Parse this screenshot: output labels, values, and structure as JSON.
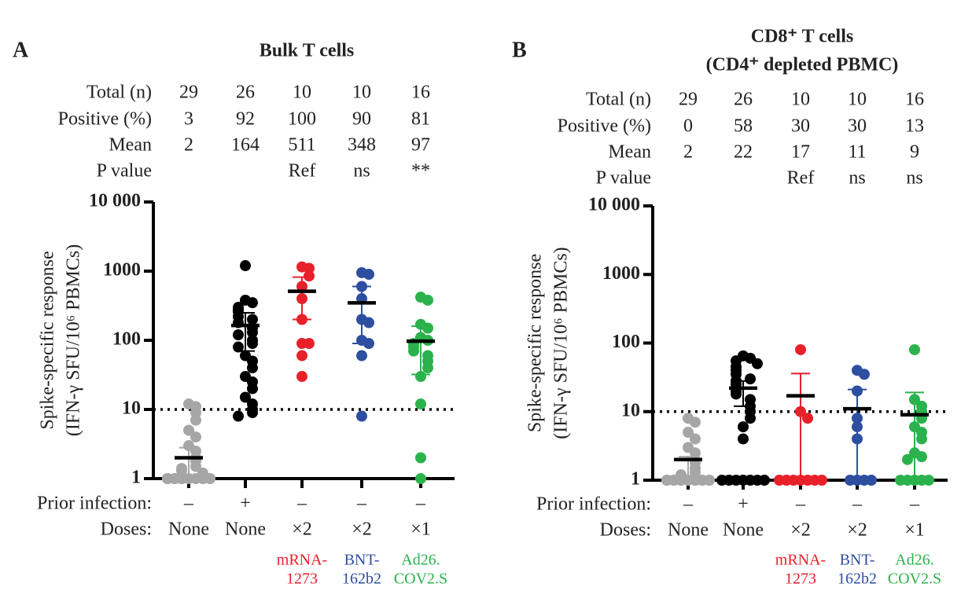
{
  "chart_data": [
    {
      "type": "scatter",
      "panel": "A",
      "title": [
        "Bulk T cells"
      ],
      "ylabel": [
        "Spike-specific response",
        "(IFN-γ SFU/10⁶ PBMCs)"
      ],
      "log": true,
      "ylim": [
        1,
        10000
      ],
      "yticks": [
        1,
        10,
        100,
        1000,
        {
          "value": 10000,
          "label": "10 000"
        }
      ],
      "threshold": 10,
      "header": [
        {
          "label": "Total (n)",
          "values": [
            29,
            26,
            10,
            10,
            16
          ]
        },
        {
          "label": "Positive (%)",
          "values": [
            3,
            92,
            100,
            90,
            81
          ]
        },
        {
          "label": "Mean",
          "values": [
            2,
            164,
            511,
            348,
            97
          ]
        },
        {
          "label": "P value",
          "values": [
            null,
            null,
            "Ref",
            "ns",
            "**"
          ]
        }
      ],
      "groups": [
        {
          "color": "#a6a6a6",
          "values": [
            12,
            11,
            9,
            7,
            5,
            4,
            3,
            2.5,
            2,
            1.8,
            1.5,
            1.4,
            1.3,
            1.2,
            1.1,
            1,
            1,
            1,
            1,
            1,
            1,
            1,
            1,
            1,
            1,
            1,
            1,
            1,
            1
          ],
          "error_low": 1,
          "error_high": 2.8
        },
        {
          "color": "#000000",
          "values": [
            1200,
            380,
            350,
            300,
            280,
            260,
            220,
            200,
            180,
            150,
            130,
            120,
            100,
            90,
            80,
            60,
            50,
            40,
            30,
            25,
            20,
            15,
            12,
            10,
            9,
            8
          ],
          "error_low": 70,
          "error_high": 250
        },
        {
          "color": "#e8202a",
          "values": [
            1150,
            1100,
            850,
            600,
            400,
            200,
            90,
            90,
            60,
            30
          ],
          "error_low": 200,
          "error_high": 820
        },
        {
          "color": "#2e4ea0",
          "values": [
            950,
            900,
            600,
            400,
            200,
            180,
            100,
            90,
            60,
            8
          ],
          "error_low": 90,
          "error_high": 600
        },
        {
          "color": "#2bb24c",
          "values": [
            420,
            380,
            170,
            150,
            110,
            100,
            90,
            80,
            70,
            60,
            50,
            40,
            30,
            12,
            2,
            1
          ],
          "error_low": 32,
          "error_high": 160
        }
      ],
      "prior": {
        "label": "Prior infection:",
        "values": [
          "–",
          "+",
          "–",
          "–",
          "–"
        ]
      },
      "doses": {
        "label": "Doses:",
        "values": [
          "None",
          "None",
          "×2",
          "×2",
          "×1"
        ]
      },
      "vaccines": [
        null,
        null,
        [
          "mRNA-",
          "1273"
        ],
        [
          "BNT-",
          "162b2"
        ],
        [
          "Ad26.",
          "COV2.S"
        ]
      ]
    },
    {
      "type": "scatter",
      "panel": "B",
      "title": [
        "CD8⁺ T cells",
        "(CD4⁺ depleted PBMC)"
      ],
      "ylabel": [
        "Spike-specific response",
        "(IFN-γ SFU/10⁶ PBMCs)"
      ],
      "log": true,
      "ylim": [
        1,
        10000
      ],
      "yticks": [
        1,
        10,
        100,
        1000,
        {
          "value": 10000,
          "label": "10 000"
        }
      ],
      "threshold": 10,
      "header": [
        {
          "label": "Total (n)",
          "values": [
            29,
            26,
            10,
            10,
            16
          ]
        },
        {
          "label": "Positive (%)",
          "values": [
            0,
            58,
            30,
            30,
            13
          ]
        },
        {
          "label": "Mean",
          "values": [
            2,
            22,
            17,
            11,
            9
          ]
        },
        {
          "label": "P value",
          "values": [
            null,
            null,
            "Ref",
            "ns",
            "ns"
          ]
        }
      ],
      "groups": [
        {
          "color": "#a6a6a6",
          "values": [
            8,
            7,
            5,
            4,
            3,
            2.5,
            2,
            1.8,
            1.5,
            1.3,
            1.2,
            1,
            1,
            1,
            1,
            1,
            1,
            1,
            1,
            1,
            1,
            1,
            1,
            1,
            1,
            1,
            1,
            1,
            1
          ],
          "error_low": 1,
          "error_high": 2.2
        },
        {
          "color": "#000000",
          "values": [
            65,
            60,
            55,
            50,
            45,
            40,
            35,
            30,
            28,
            25,
            22,
            20,
            18,
            15,
            12,
            10,
            8,
            6,
            4,
            1,
            1,
            1,
            1,
            1,
            1,
            1
          ],
          "error_low": 12,
          "error_high": 28
        },
        {
          "color": "#e8202a",
          "values": [
            80,
            10,
            8,
            1,
            1,
            1,
            1,
            1,
            1,
            1
          ],
          "error_low": 1,
          "error_high": 36
        },
        {
          "color": "#2e4ea0",
          "values": [
            40,
            35,
            20,
            8,
            6,
            4,
            1,
            1,
            1,
            1
          ],
          "error_low": 1,
          "error_high": 21
        },
        {
          "color": "#2bb24c",
          "values": [
            80,
            15,
            12,
            10,
            8,
            6,
            5,
            4,
            2.5,
            2.2,
            2,
            1,
            1,
            1,
            1,
            1
          ],
          "error_low": 1,
          "error_high": 19
        }
      ],
      "prior": {
        "label": "Prior infection:",
        "values": [
          "–",
          "+",
          "–",
          "–",
          "–"
        ]
      },
      "doses": {
        "label": "Doses:",
        "values": [
          "None",
          "None",
          "×2",
          "×2",
          "×1"
        ]
      },
      "vaccines": [
        null,
        null,
        [
          "mRNA-",
          "1273"
        ],
        [
          "BNT-",
          "162b2"
        ],
        [
          "Ad26.",
          "COV2.S"
        ]
      ]
    }
  ]
}
